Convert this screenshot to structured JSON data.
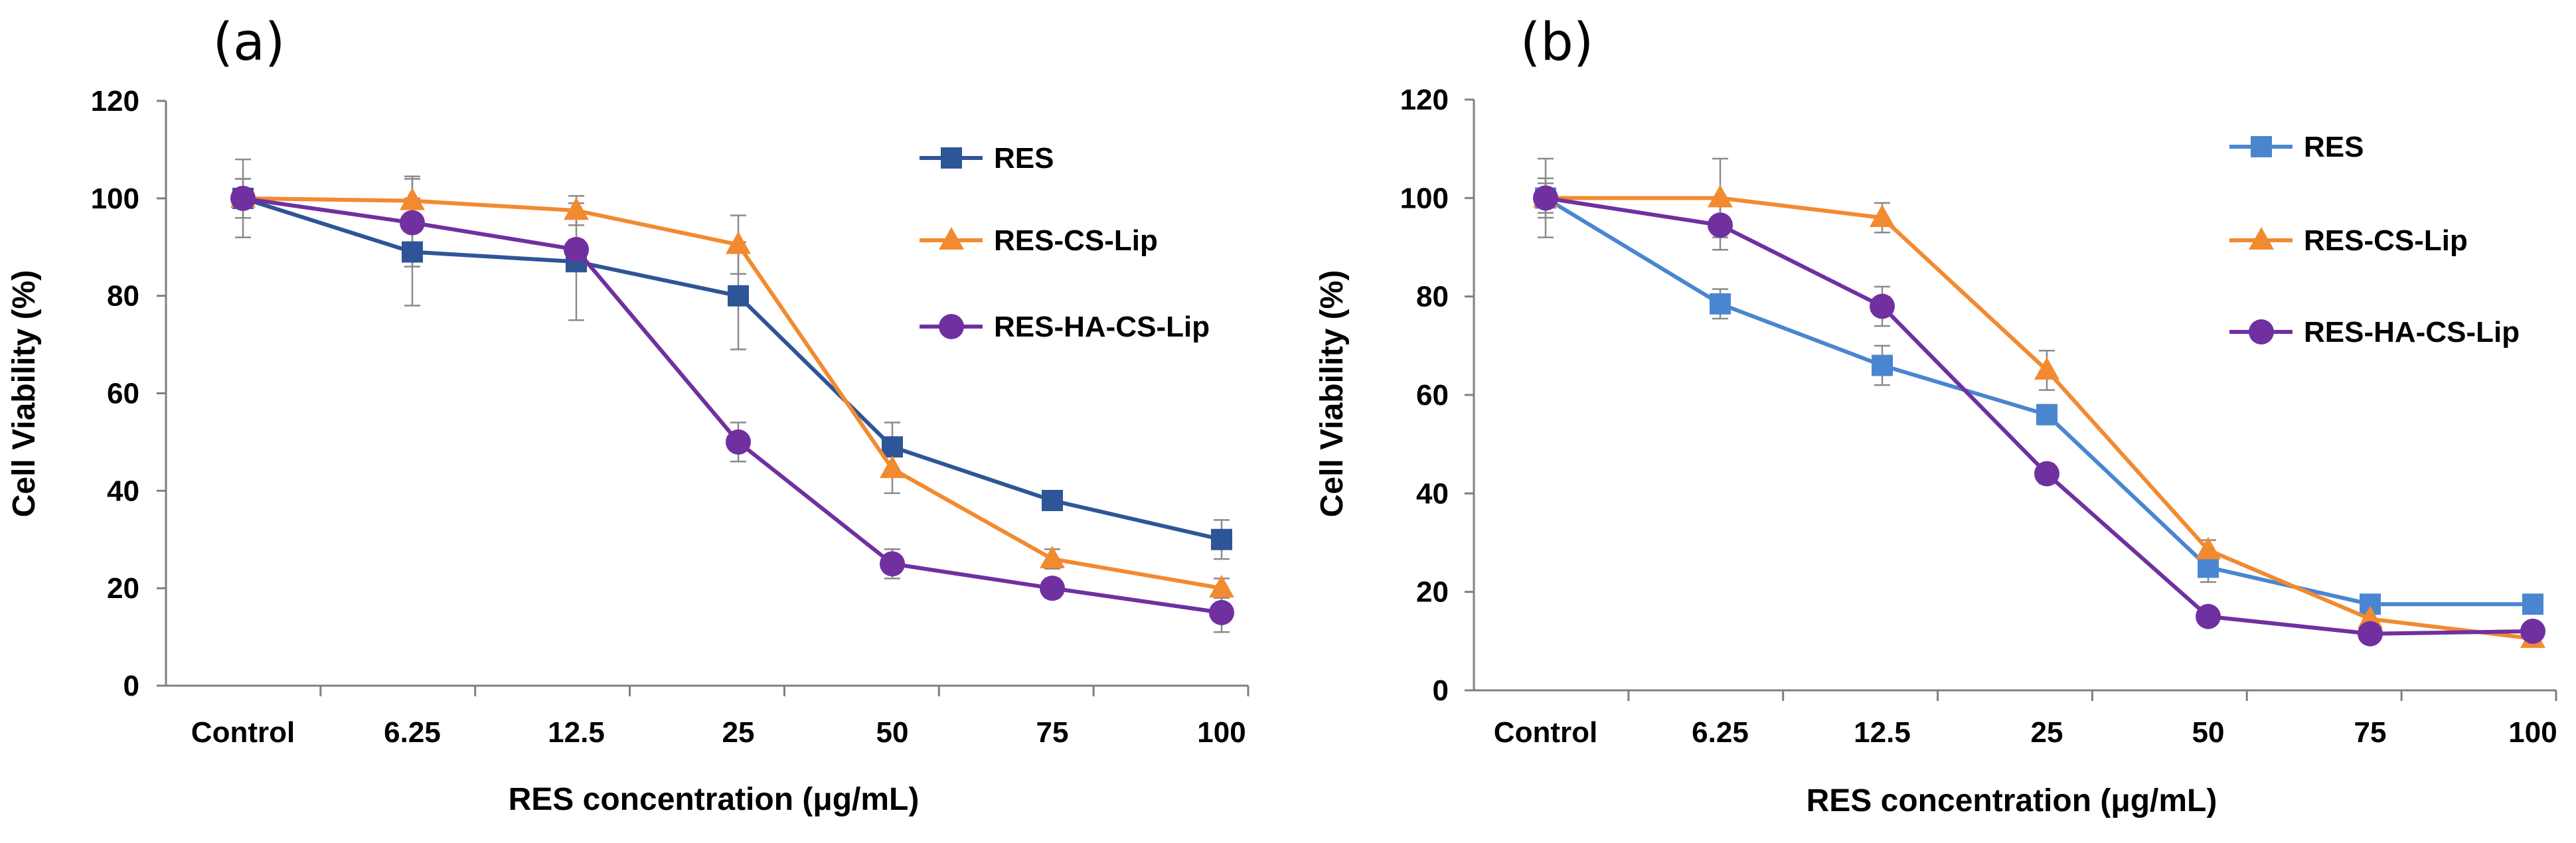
{
  "chart_data": [
    {
      "type": "line",
      "panel_label": "(a)",
      "categories": [
        "Control",
        "6.25",
        "12.5",
        "25",
        "50",
        "75",
        "100"
      ],
      "xlabel": "RES concentration (μg/mL)",
      "ylabel": "Cell Viability (%)",
      "ylim": [
        0,
        120
      ],
      "yticks": [
        "0",
        "20",
        "40",
        "60",
        "80",
        "100",
        "120"
      ],
      "grid": false,
      "legend_position": "top-right",
      "series": [
        {
          "name": "RES",
          "marker": "square",
          "color": "#2E5597",
          "values": [
            100,
            89,
            87,
            80,
            49,
            38,
            30
          ],
          "errors": [
            4,
            11,
            12,
            11,
            5,
            2,
            4
          ]
        },
        {
          "name": "RES-CS-Lip",
          "marker": "triangle",
          "color": "#F28A30",
          "values": [
            100,
            99.5,
            97.5,
            90.5,
            44.5,
            26,
            20
          ],
          "errors": [
            8,
            5,
            3,
            6,
            5,
            2,
            2
          ]
        },
        {
          "name": "RES-HA-CS-Lip",
          "marker": "circle",
          "color": "#7030A0",
          "values": [
            100,
            95,
            89.5,
            50,
            25,
            20,
            15
          ],
          "errors": [
            4,
            9,
            2,
            4,
            3,
            2,
            4
          ]
        }
      ]
    },
    {
      "type": "line",
      "panel_label": "(b)",
      "categories": [
        "Control",
        "6.25",
        "12.5",
        "25",
        "50",
        "75",
        "100"
      ],
      "xlabel": "RES concentration (μg/mL)",
      "ylabel": "Cell Viability (%)",
      "ylim": [
        0,
        120
      ],
      "yticks": [
        "0",
        "20",
        "40",
        "60",
        "80",
        "100",
        "120"
      ],
      "grid": false,
      "legend_position": "top-right",
      "series": [
        {
          "name": "RES",
          "marker": "square",
          "color": "#4A86D0",
          "values": [
            100,
            78.5,
            66,
            56,
            25,
            17.5,
            17.5
          ],
          "errors": [
            3,
            3,
            4,
            2,
            3,
            1,
            1
          ]
        },
        {
          "name": "RES-CS-Lip",
          "marker": "triangle",
          "color": "#F28A30",
          "values": [
            100,
            100,
            96,
            65,
            28.5,
            14.5,
            10.5
          ],
          "errors": [
            8,
            8,
            3,
            4,
            2,
            1,
            1
          ]
        },
        {
          "name": "RES-HA-CS-Lip",
          "marker": "circle",
          "color": "#7030A0",
          "values": [
            100,
            94.5,
            78,
            44,
            15,
            11.5,
            12
          ],
          "errors": [
            4,
            5,
            4,
            2,
            1,
            1,
            1
          ]
        }
      ]
    }
  ]
}
